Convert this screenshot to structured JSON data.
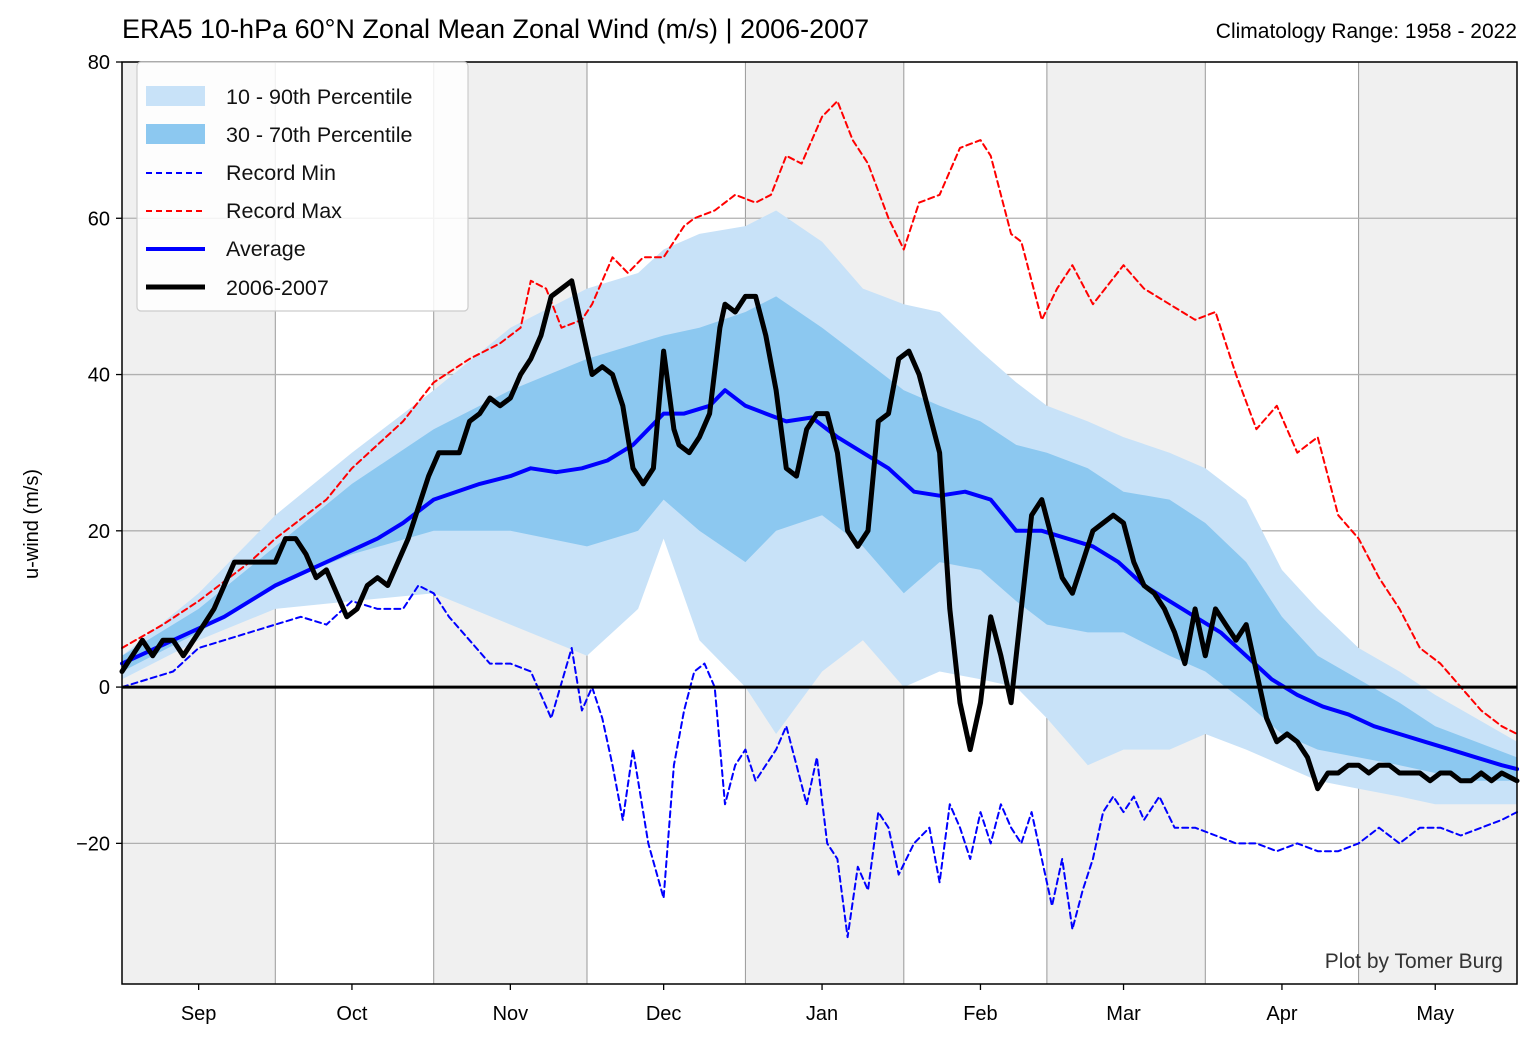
{
  "header": {
    "title": "ERA5 10-hPa 60°N Zonal Mean Zonal Wind (m/s) | 2006-2007",
    "subtitle": "Climatology Range: 1958 - 2022"
  },
  "credit": "Plot by Tomer Burg",
  "colors": {
    "band_outer": "#c8e2f8",
    "band_inner": "#8cc8f0",
    "record_min": "#0000ff",
    "record_max": "#ff0000",
    "average": "#0000ff",
    "season": "#000000",
    "shade": "#f0f0f0",
    "grid": "#b0b0b0"
  },
  "chart_data": {
    "type": "line",
    "ylabel": "u-wind (m/s)",
    "xlabel": "",
    "ylim": [
      -38,
      80
    ],
    "yticks": [
      -20,
      0,
      20,
      40,
      60,
      80
    ],
    "ytick_labels": [
      "−20",
      "0",
      "20",
      "40",
      "60",
      "80"
    ],
    "x_units": "day index from Aug 16 2006",
    "xlim": [
      0,
      273
    ],
    "month_labels": [
      {
        "label": "Sep",
        "day": 15
      },
      {
        "label": "Oct",
        "day": 45
      },
      {
        "label": "Nov",
        "day": 76
      },
      {
        "label": "Dec",
        "day": 106
      },
      {
        "label": "Jan",
        "day": 137
      },
      {
        "label": "Feb",
        "day": 168
      },
      {
        "label": "Mar",
        "day": 196
      },
      {
        "label": "Apr",
        "day": 227
      },
      {
        "label": "May",
        "day": 257
      }
    ],
    "gridlines_x": [
      30,
      61,
      91,
      122,
      153,
      181,
      212,
      242
    ],
    "shaded_spans": [
      [
        0,
        30
      ],
      [
        61,
        91
      ],
      [
        122,
        153
      ],
      [
        181,
        212
      ],
      [
        242,
        273
      ]
    ],
    "legend": {
      "placement": "upper-left",
      "entries": [
        "10 - 90th Percentile",
        "30 - 70th Percentile",
        "Record Min",
        "Record Max",
        "Average",
        "2006-2007"
      ]
    },
    "bands": {
      "p10_90": {
        "x": [
          0,
          15,
          30,
          45,
          61,
          76,
          91,
          101,
          106,
          113,
          122,
          128,
          137,
          145,
          153,
          160,
          168,
          175,
          181,
          189,
          196,
          205,
          212,
          220,
          227,
          234,
          242,
          250,
          257,
          265,
          273
        ],
        "low": [
          1,
          6,
          10,
          11,
          12,
          8,
          4,
          10,
          19,
          6,
          0,
          -6,
          2,
          6,
          0,
          2,
          1,
          0,
          -4,
          -10,
          -8,
          -8,
          -6,
          -8,
          -10,
          -12,
          -13,
          -14,
          -15,
          -15,
          -15
        ],
        "high": [
          4,
          12,
          22,
          30,
          38,
          46,
          51,
          53,
          56,
          58,
          59,
          61,
          57,
          51,
          49,
          48,
          43,
          39,
          36,
          34,
          32,
          30,
          28,
          24,
          15,
          10,
          5,
          2,
          -1,
          -4,
          -7
        ]
      },
      "p30_70": {
        "x": [
          0,
          15,
          30,
          45,
          61,
          76,
          91,
          101,
          106,
          113,
          122,
          128,
          137,
          145,
          153,
          160,
          168,
          175,
          181,
          189,
          196,
          205,
          212,
          220,
          227,
          234,
          242,
          250,
          257,
          265,
          273
        ],
        "low": [
          2,
          7,
          13,
          17,
          20,
          20,
          18,
          20,
          24,
          20,
          16,
          20,
          22,
          18,
          12,
          16,
          15,
          11,
          8,
          7,
          7,
          4,
          2,
          -2,
          -6,
          -8,
          -9,
          -10,
          -11,
          -12,
          -12
        ],
        "high": [
          4,
          10,
          18,
          26,
          33,
          38,
          42,
          44,
          45,
          46,
          48,
          50,
          46,
          42,
          38,
          36,
          34,
          31,
          30,
          28,
          25,
          24,
          21,
          16,
          9,
          4,
          1,
          -2,
          -5,
          -7,
          -9
        ]
      }
    },
    "series": [
      {
        "name": "Record Max",
        "x": [
          0,
          8,
          15,
          25,
          30,
          40,
          45,
          55,
          61,
          68,
          74,
          78,
          80,
          83,
          86,
          90,
          92,
          96,
          99,
          102,
          106,
          110,
          112,
          116,
          120,
          124,
          127,
          130,
          133,
          137,
          140,
          143,
          146,
          150,
          153,
          156,
          160,
          164,
          168,
          170,
          174,
          176,
          180,
          183,
          186,
          190,
          196,
          200,
          205,
          210,
          214,
          218,
          222,
          226,
          230,
          234,
          238,
          242,
          246,
          250,
          254,
          258,
          262,
          266,
          270,
          273
        ],
        "y": [
          5,
          8,
          11,
          16,
          19,
          24,
          28,
          34,
          39,
          42,
          44,
          46,
          52,
          51,
          46,
          47,
          49,
          55,
          53,
          55,
          55,
          59,
          60,
          61,
          63,
          62,
          63,
          68,
          67,
          73,
          75,
          70,
          67,
          60,
          56,
          62,
          63,
          69,
          70,
          68,
          58,
          57,
          47,
          51,
          54,
          49,
          54,
          51,
          49,
          47,
          48,
          40,
          33,
          36,
          30,
          32,
          22,
          19,
          14,
          10,
          5,
          3,
          0,
          -3,
          -5,
          -6
        ]
      },
      {
        "name": "Record Min",
        "x": [
          0,
          5,
          10,
          15,
          20,
          25,
          30,
          35,
          40,
          45,
          50,
          55,
          58,
          61,
          64,
          68,
          72,
          76,
          80,
          84,
          88,
          90,
          92,
          94,
          96,
          98,
          100,
          103,
          106,
          108,
          110,
          112,
          114,
          116,
          118,
          120,
          122,
          124,
          126,
          128,
          130,
          132,
          134,
          136,
          138,
          140,
          142,
          144,
          146,
          148,
          150,
          152,
          155,
          158,
          160,
          162,
          164,
          166,
          168,
          170,
          172,
          174,
          176,
          178,
          180,
          182,
          184,
          186,
          188,
          190,
          192,
          194,
          196,
          198,
          200,
          203,
          206,
          210,
          214,
          218,
          222,
          226,
          230,
          234,
          238,
          242,
          246,
          250,
          254,
          258,
          262,
          266,
          270,
          273
        ],
        "y": [
          0,
          1,
          2,
          5,
          6,
          7,
          8,
          9,
          8,
          11,
          10,
          10,
          13,
          12,
          9,
          6,
          3,
          3,
          2,
          -4,
          5,
          -3,
          0,
          -4,
          -10,
          -17,
          -8,
          -20,
          -27,
          -10,
          -3,
          2,
          3,
          0,
          -15,
          -10,
          -8,
          -12,
          -10,
          -8,
          -5,
          -10,
          -15,
          -9,
          -20,
          -22,
          -32,
          -23,
          -26,
          -16,
          -18,
          -24,
          -20,
          -18,
          -25,
          -15,
          -18,
          -22,
          -16,
          -20,
          -15,
          -18,
          -20,
          -16,
          -22,
          -28,
          -22,
          -31,
          -26,
          -22,
          -16,
          -14,
          -16,
          -14,
          -17,
          -14,
          -18,
          -18,
          -19,
          -20,
          -20,
          -21,
          -20,
          -21,
          -21,
          -20,
          -18,
          -20,
          -18,
          -18,
          -19,
          -18,
          -17,
          -16
        ]
      },
      {
        "name": "Average",
        "x": [
          0,
          10,
          20,
          30,
          40,
          50,
          55,
          61,
          70,
          76,
          80,
          85,
          90,
          95,
          100,
          106,
          110,
          115,
          118,
          122,
          126,
          130,
          135,
          140,
          145,
          150,
          155,
          160,
          165,
          170,
          175,
          180,
          185,
          190,
          195,
          200,
          205,
          210,
          215,
          220,
          225,
          230,
          235,
          240,
          245,
          250,
          255,
          260,
          265,
          270,
          273
        ],
        "y": [
          3,
          6,
          9,
          13,
          16,
          19,
          21,
          24,
          26,
          27,
          28,
          27.5,
          28,
          29,
          31,
          35,
          35,
          36,
          38,
          36,
          35,
          34,
          34.5,
          32,
          30,
          28,
          25,
          24.5,
          25,
          24,
          20,
          20,
          19,
          18,
          16,
          13,
          11,
          9,
          7,
          4,
          1,
          -1,
          -2.5,
          -3.5,
          -5,
          -6,
          -7,
          -8,
          -9,
          -10,
          -10.5
        ]
      },
      {
        "name": "2006-2007",
        "x": [
          0,
          2,
          4,
          6,
          8,
          10,
          12,
          14,
          16,
          18,
          20,
          22,
          24,
          26,
          28,
          30,
          32,
          34,
          36,
          38,
          40,
          42,
          44,
          46,
          48,
          50,
          52,
          54,
          56,
          58,
          60,
          62,
          64,
          66,
          68,
          70,
          72,
          74,
          76,
          78,
          80,
          82,
          84,
          86,
          88,
          90,
          92,
          94,
          96,
          98,
          100,
          102,
          104,
          106,
          108,
          109,
          111,
          113,
          115,
          117,
          118,
          120,
          122,
          124,
          126,
          128,
          130,
          132,
          134,
          136,
          138,
          140,
          142,
          144,
          146,
          148,
          150,
          152,
          154,
          156,
          158,
          160,
          162,
          164,
          166,
          168,
          170,
          172,
          174,
          176,
          178,
          180,
          182,
          184,
          186,
          188,
          190,
          192,
          194,
          196,
          198,
          200,
          202,
          204,
          206,
          208,
          210,
          212,
          214,
          216,
          218,
          220,
          222,
          224,
          226,
          228,
          230,
          232,
          234,
          236,
          238,
          240,
          242,
          244,
          246,
          248,
          250,
          252,
          254,
          256,
          258,
          260,
          262,
          264,
          266,
          268,
          270,
          273
        ],
        "y": [
          2,
          4,
          6,
          4,
          6,
          6,
          4,
          6,
          8,
          10,
          13,
          16,
          16,
          16,
          16,
          16,
          19,
          19,
          17,
          14,
          15,
          12,
          9,
          10,
          13,
          14,
          13,
          16,
          19,
          23,
          27,
          30,
          30,
          30,
          34,
          35,
          37,
          36,
          37,
          40,
          42,
          45,
          50,
          51,
          52,
          46,
          40,
          41,
          40,
          36,
          28,
          26,
          28,
          43,
          33,
          31,
          30,
          32,
          35,
          46,
          49,
          48,
          50,
          50,
          45,
          38,
          28,
          27,
          33,
          35,
          35,
          30,
          20,
          18,
          20,
          34,
          35,
          42,
          43,
          40,
          35,
          30,
          10,
          -2,
          -8,
          -2,
          9,
          4,
          -2,
          10,
          22,
          24,
          19,
          14,
          12,
          16,
          20,
          21,
          22,
          21,
          16,
          13,
          12,
          10,
          7,
          3,
          10,
          4,
          10,
          8,
          6,
          8,
          2,
          -4,
          -7,
          -6,
          -7,
          -9,
          -13,
          -11,
          -11,
          -10,
          -10,
          -11,
          -10,
          -10,
          -11,
          -11,
          -11,
          -12,
          -11,
          -11,
          -12,
          -12,
          -11,
          -12,
          -11,
          -12
        ]
      }
    ]
  }
}
